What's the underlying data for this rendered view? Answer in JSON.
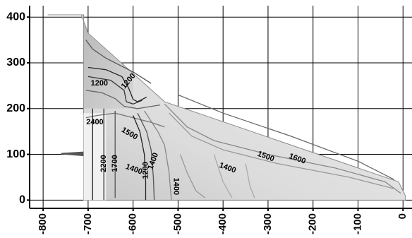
{
  "chart_data": {
    "type": "contour",
    "title": "",
    "xlabel": "",
    "ylabel": "",
    "xlim": [
      -830,
      20
    ],
    "ylim": [
      -18,
      425
    ],
    "grid": true,
    "x_ticks": [
      {
        "value": -800,
        "label": "-800"
      },
      {
        "value": -700,
        "label": "-700"
      },
      {
        "value": -600,
        "label": "-600"
      },
      {
        "value": -500,
        "label": "-500"
      },
      {
        "value": -400,
        "label": "-400"
      },
      {
        "value": -300,
        "label": "-300"
      },
      {
        "value": -200,
        "label": "-200"
      },
      {
        "value": -100,
        "label": "-100"
      },
      {
        "value": 0,
        "label": "0"
      }
    ],
    "y_ticks": [
      {
        "value": 0,
        "label": "0"
      },
      {
        "value": 100,
        "label": "100"
      },
      {
        "value": 200,
        "label": "200"
      },
      {
        "value": 300,
        "label": "300"
      },
      {
        "value": 400,
        "label": "400"
      }
    ],
    "outline": [
      [
        -710,
        0
      ],
      [
        -710,
        405
      ],
      [
        -790,
        405
      ],
      [
        -715,
        405
      ],
      [
        -700,
        365
      ],
      [
        -530,
        215
      ],
      [
        -10,
        40
      ],
      [
        5,
        10
      ],
      [
        5,
        0
      ]
    ],
    "contour_labels": [
      {
        "text": "1200",
        "x": -675,
        "y": 255,
        "angle": 0
      },
      {
        "text": "1200",
        "x": -610,
        "y": 260,
        "angle": 50
      },
      {
        "text": "2400",
        "x": -685,
        "y": 170,
        "angle": 0
      },
      {
        "text": "1500",
        "x": -608,
        "y": 145,
        "angle": -30
      },
      {
        "text": "2200",
        "x": -665,
        "y": 80,
        "angle": 90
      },
      {
        "text": "1700",
        "x": -640,
        "y": 80,
        "angle": 90
      },
      {
        "text": "1400",
        "x": -598,
        "y": 67,
        "angle": -20
      },
      {
        "text": "1400",
        "x": -555,
        "y": 85,
        "angle": 70
      },
      {
        "text": "1200",
        "x": -572,
        "y": 65,
        "angle": 90
      },
      {
        "text": "1400",
        "x": -505,
        "y": 30,
        "angle": -90
      },
      {
        "text": "1400",
        "x": -390,
        "y": 70,
        "angle": -20
      },
      {
        "text": "1500",
        "x": -305,
        "y": 95,
        "angle": -20
      },
      {
        "text": "1600",
        "x": -235,
        "y": 90,
        "angle": -20
      }
    ]
  }
}
